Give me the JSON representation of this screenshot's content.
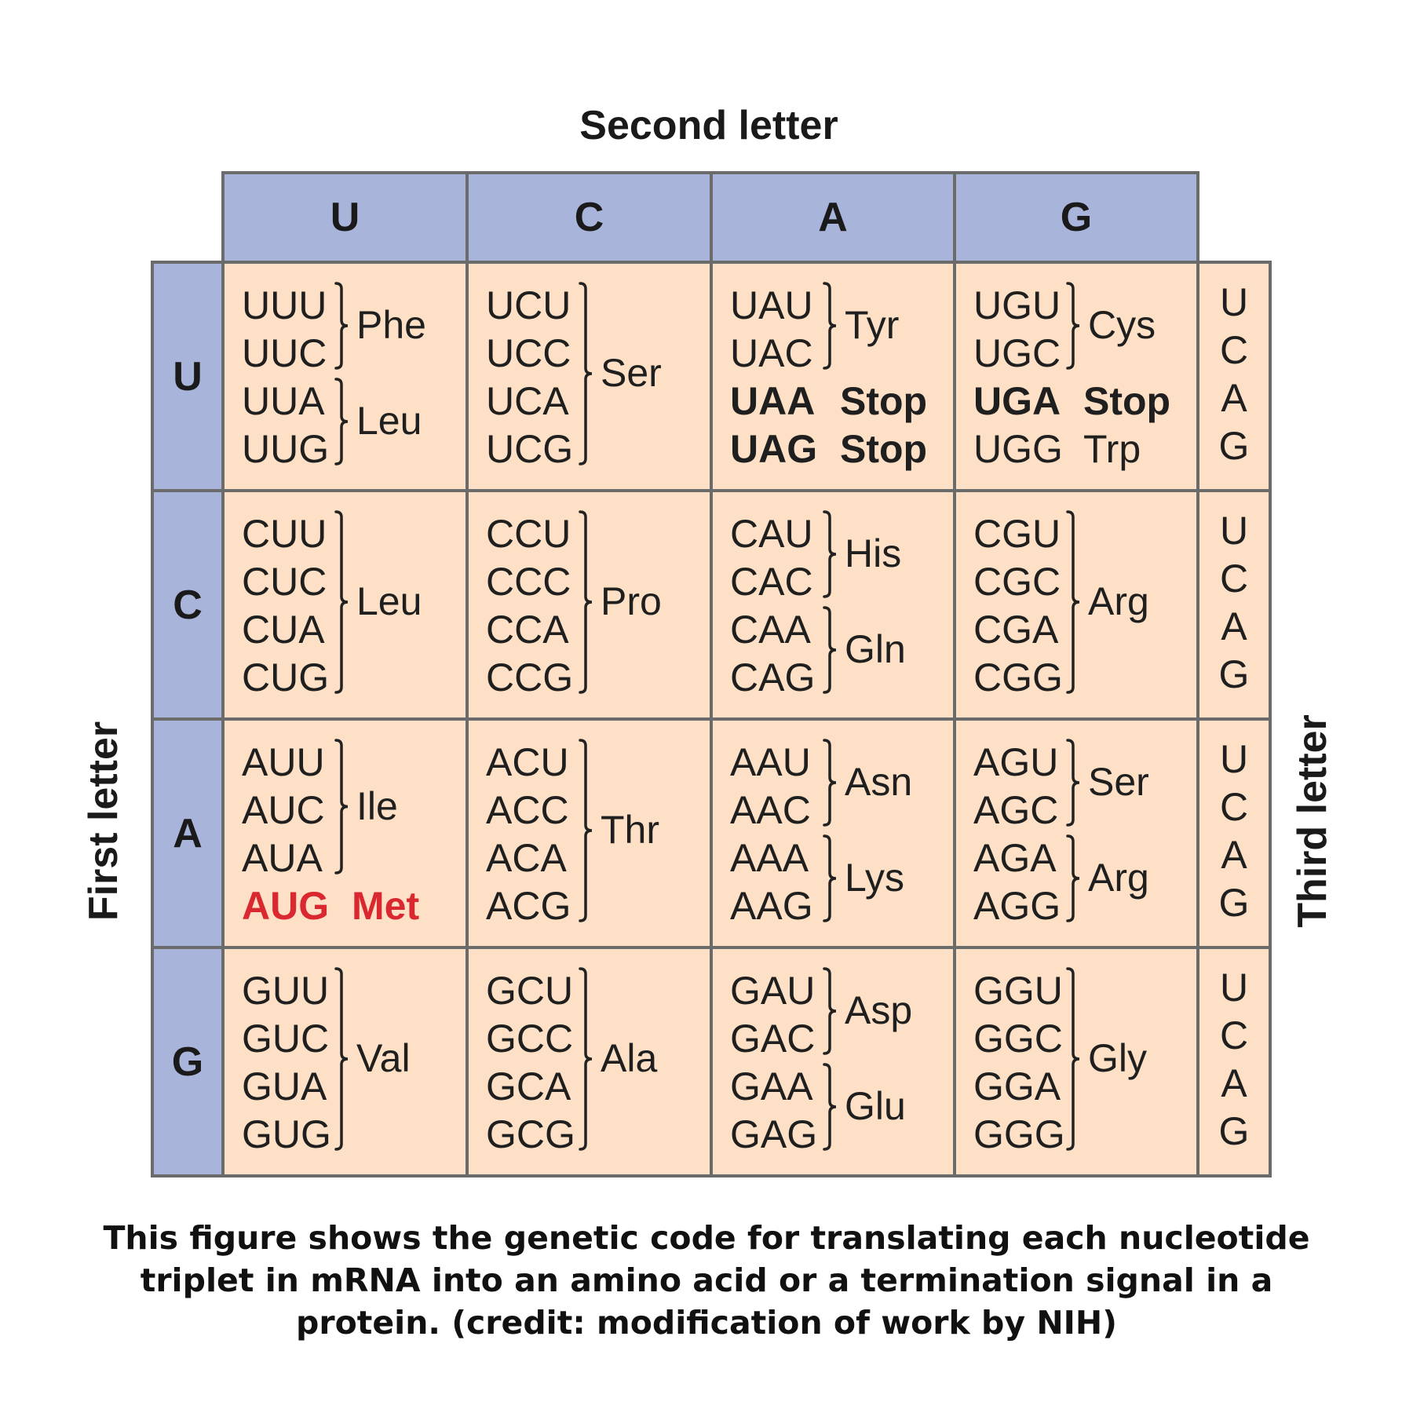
{
  "titles": {
    "second_letter": "Second letter",
    "first_letter": "First letter",
    "third_letter": "Third letter"
  },
  "second_letters": [
    "U",
    "C",
    "A",
    "G"
  ],
  "first_letters": [
    "U",
    "C",
    "A",
    "G"
  ],
  "third_letters": [
    "U",
    "C",
    "A",
    "G"
  ],
  "colors": {
    "header_fill": "#a9b4da",
    "cell_fill": "#fde0c5",
    "border": "#6b6b6b",
    "start_codon": "#d9282f"
  },
  "rows": [
    [
      {
        "groups": [
          {
            "codons": [
              "UUU",
              "UUC"
            ],
            "aa": "Phe"
          },
          {
            "codons": [
              "UUA",
              "UUG"
            ],
            "aa": "Leu"
          }
        ]
      },
      {
        "groups": [
          {
            "codons": [
              "UCU",
              "UCC",
              "UCA",
              "UCG"
            ],
            "aa": "Ser"
          }
        ]
      },
      {
        "groups": [
          {
            "codons": [
              "UAU",
              "UAC"
            ],
            "aa": "Tyr"
          },
          {
            "codons": [
              "UAA"
            ],
            "aa": "Stop",
            "style": "bold",
            "nobrace": true
          },
          {
            "codons": [
              "UAG"
            ],
            "aa": "Stop",
            "style": "bold",
            "nobrace": true
          }
        ]
      },
      {
        "groups": [
          {
            "codons": [
              "UGU",
              "UGC"
            ],
            "aa": "Cys"
          },
          {
            "codons": [
              "UGA"
            ],
            "aa": "Stop",
            "style": "bold",
            "nobrace": true
          },
          {
            "codons": [
              "UGG"
            ],
            "aa": "Trp",
            "nobrace": true
          }
        ]
      }
    ],
    [
      {
        "groups": [
          {
            "codons": [
              "CUU",
              "CUC",
              "CUA",
              "CUG"
            ],
            "aa": "Leu"
          }
        ]
      },
      {
        "groups": [
          {
            "codons": [
              "CCU",
              "CCC",
              "CCA",
              "CCG"
            ],
            "aa": "Pro"
          }
        ]
      },
      {
        "groups": [
          {
            "codons": [
              "CAU",
              "CAC"
            ],
            "aa": "His"
          },
          {
            "codons": [
              "CAA",
              "CAG"
            ],
            "aa": "Gln"
          }
        ]
      },
      {
        "groups": [
          {
            "codons": [
              "CGU",
              "CGC",
              "CGA",
              "CGG"
            ],
            "aa": "Arg"
          }
        ]
      }
    ],
    [
      {
        "groups": [
          {
            "codons": [
              "AUU",
              "AUC",
              "AUA"
            ],
            "aa": "Ile"
          },
          {
            "codons": [
              "AUG"
            ],
            "aa": "Met",
            "style": "red",
            "nobrace": true
          }
        ]
      },
      {
        "groups": [
          {
            "codons": [
              "ACU",
              "ACC",
              "ACA",
              "ACG"
            ],
            "aa": "Thr"
          }
        ]
      },
      {
        "groups": [
          {
            "codons": [
              "AAU",
              "AAC"
            ],
            "aa": "Asn"
          },
          {
            "codons": [
              "AAA",
              "AAG"
            ],
            "aa": "Lys"
          }
        ]
      },
      {
        "groups": [
          {
            "codons": [
              "AGU",
              "AGC"
            ],
            "aa": "Ser"
          },
          {
            "codons": [
              "AGA",
              "AGG"
            ],
            "aa": "Arg"
          }
        ]
      }
    ],
    [
      {
        "groups": [
          {
            "codons": [
              "GUU",
              "GUC",
              "GUA",
              "GUG"
            ],
            "aa": "Val"
          }
        ]
      },
      {
        "groups": [
          {
            "codons": [
              "GCU",
              "GCC",
              "GCA",
              "GCG"
            ],
            "aa": "Ala"
          }
        ]
      },
      {
        "groups": [
          {
            "codons": [
              "GAU",
              "GAC"
            ],
            "aa": "Asp"
          },
          {
            "codons": [
              "GAA",
              "GAG"
            ],
            "aa": "Glu"
          }
        ]
      },
      {
        "groups": [
          {
            "codons": [
              "GGU",
              "GGC",
              "GGA",
              "GGG"
            ],
            "aa": "Gly"
          }
        ]
      }
    ]
  ],
  "caption": "This figure shows the genetic code for translating each nucleotide triplet in mRNA into an amino acid or a termination signal in a protein. (credit: modification of work by NIH)"
}
